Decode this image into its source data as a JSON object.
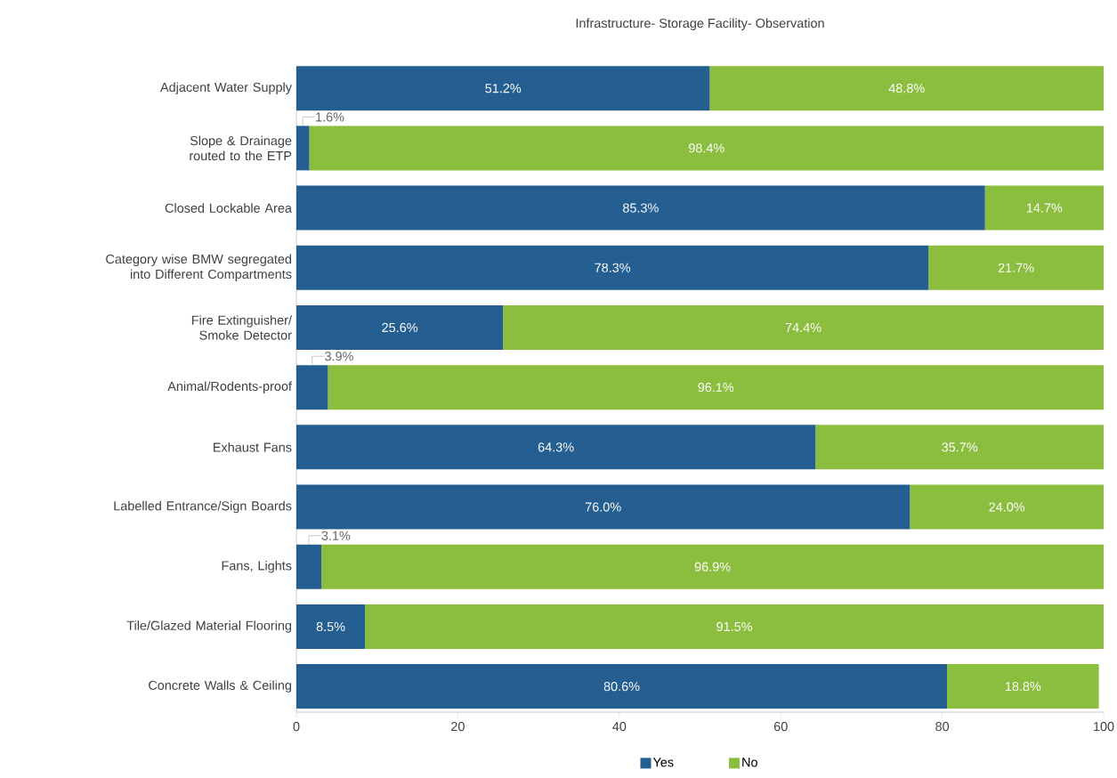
{
  "chart_data": {
    "type": "bar",
    "orientation": "horizontal",
    "stacked": true,
    "title": "Infrastructure- Storage Facility- Observation",
    "categories": [
      "Adjacent Water Supply",
      "Slope & Drainage routed to the ETP",
      "Closed Lockable Area",
      "Category wise BMW segregated into Different Compartments",
      "Fire Extinguisher/ Smoke Detector",
      "Animal/Rodents-proof",
      "Exhaust Fans",
      "Labelled Entrance/Sign Boards",
      "Fans, Lights",
      "Tile/Glazed Material Flooring",
      "Concrete Walls & Ceiling"
    ],
    "series": [
      {
        "name": "Yes",
        "color": "#255e91",
        "values": [
          51.2,
          1.6,
          85.3,
          78.3,
          25.6,
          3.9,
          64.3,
          76.0,
          3.1,
          8.5,
          80.6
        ],
        "value_labels": [
          "51.2%",
          "1.6%",
          "85.3%",
          "78.3%",
          "25.6%",
          "3.9%",
          "64.3%",
          "76.0%",
          "3.1%",
          "8.5%",
          "80.6%"
        ]
      },
      {
        "name": "No",
        "color": "#8bbd3f",
        "values": [
          48.8,
          98.4,
          14.7,
          21.7,
          74.4,
          96.1,
          35.7,
          24.0,
          96.9,
          91.5,
          18.8
        ],
        "value_labels": [
          "48.8%",
          "98.4%",
          "14.7%",
          "21.7%",
          "74.4%",
          "96.1%",
          "35.7%",
          "24.0%",
          "96.9%",
          "91.5%",
          "18.8%"
        ]
      }
    ],
    "xlim": [
      0,
      100
    ],
    "xticks": [
      0,
      20,
      40,
      60,
      80,
      100
    ],
    "legend": "bottom"
  }
}
